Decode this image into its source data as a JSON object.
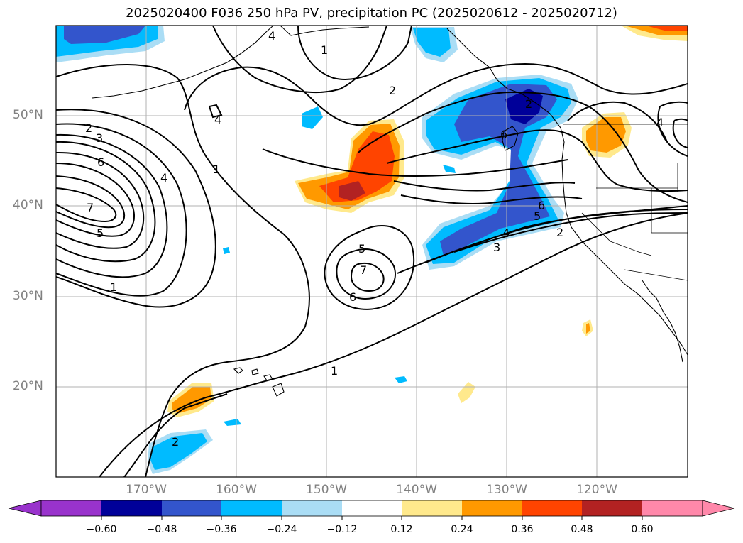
{
  "title": "2025020400 F036 250 hPa PV, precipitation PC (2025020612 - 2025020712)",
  "lat_labels": [
    "50°N",
    "40°N",
    "30°N",
    "20°N"
  ],
  "lon_labels": [
    "170°W",
    "160°W",
    "150°W",
    "140°W",
    "130°W",
    "120°W"
  ],
  "colorbar": {
    "ticks": [
      "−0.60",
      "−0.48",
      "−0.36",
      "−0.24",
      "−0.12",
      "0.12",
      "0.24",
      "0.36",
      "0.48",
      "0.60"
    ],
    "colors": [
      "#9933cc",
      "#000099",
      "#3355cc",
      "#00bbff",
      "#aaddf5",
      "#ffffff",
      "#ffe98c",
      "#ff9900",
      "#ff4400",
      "#b22222",
      "#ff88aa"
    ]
  },
  "contour_labels": [
    "1",
    "2",
    "3",
    "4",
    "5",
    "6",
    "7"
  ],
  "colors": {
    "land": "#ffffff",
    "grid": "#b0b0b0",
    "contour": "#000000"
  }
}
